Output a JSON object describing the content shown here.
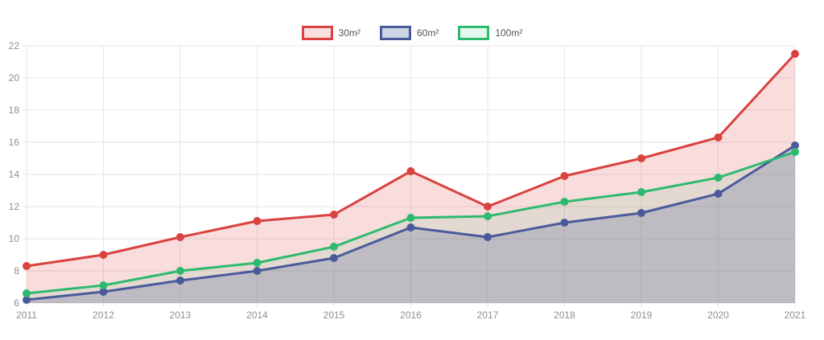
{
  "chart_data": {
    "type": "area",
    "title": "",
    "xlabel": "",
    "ylabel": "",
    "x_ticks": [
      "2011",
      "2012",
      "2013",
      "2014",
      "2015",
      "2016",
      "2017",
      "2018",
      "2019",
      "2020",
      "2021"
    ],
    "y_ticks": [
      22,
      20,
      18,
      16,
      14,
      12,
      10,
      8,
      6
    ],
    "ylim": [
      6,
      22
    ],
    "grid": true,
    "legend_position": "top-center",
    "series": [
      {
        "name": "30m²",
        "line_color": "#d9423e",
        "fill_color": "rgba(217,66,61,0.18)",
        "legend_fill": "#f8dedd",
        "values": [
          8.3,
          9.0,
          10.1,
          11.1,
          11.5,
          14.2,
          12.0,
          13.9,
          15.0,
          16.3,
          21.5
        ]
      },
      {
        "name": "60m²",
        "line_color": "#4a5a9b",
        "fill_color": "rgba(74,90,150,0.24)",
        "legend_fill": "#ccd4e6",
        "values": [
          6.2,
          6.7,
          7.4,
          8.0,
          8.8,
          10.7,
          10.1,
          11.0,
          11.6,
          12.8,
          15.8
        ]
      },
      {
        "name": "100m²",
        "line_color": "#2eba6e",
        "fill_color": "rgba(46,186,110,0.10)",
        "legend_fill": "#e4f7ec",
        "values": [
          6.6,
          7.1,
          8.0,
          8.5,
          9.5,
          11.3,
          11.4,
          12.3,
          12.9,
          13.8,
          15.4
        ]
      }
    ],
    "colors": {
      "grid_line": "#e6e6e6",
      "tick_label": "#8f8f8f",
      "legend_text": "#545454",
      "background": "#ffffff"
    }
  }
}
